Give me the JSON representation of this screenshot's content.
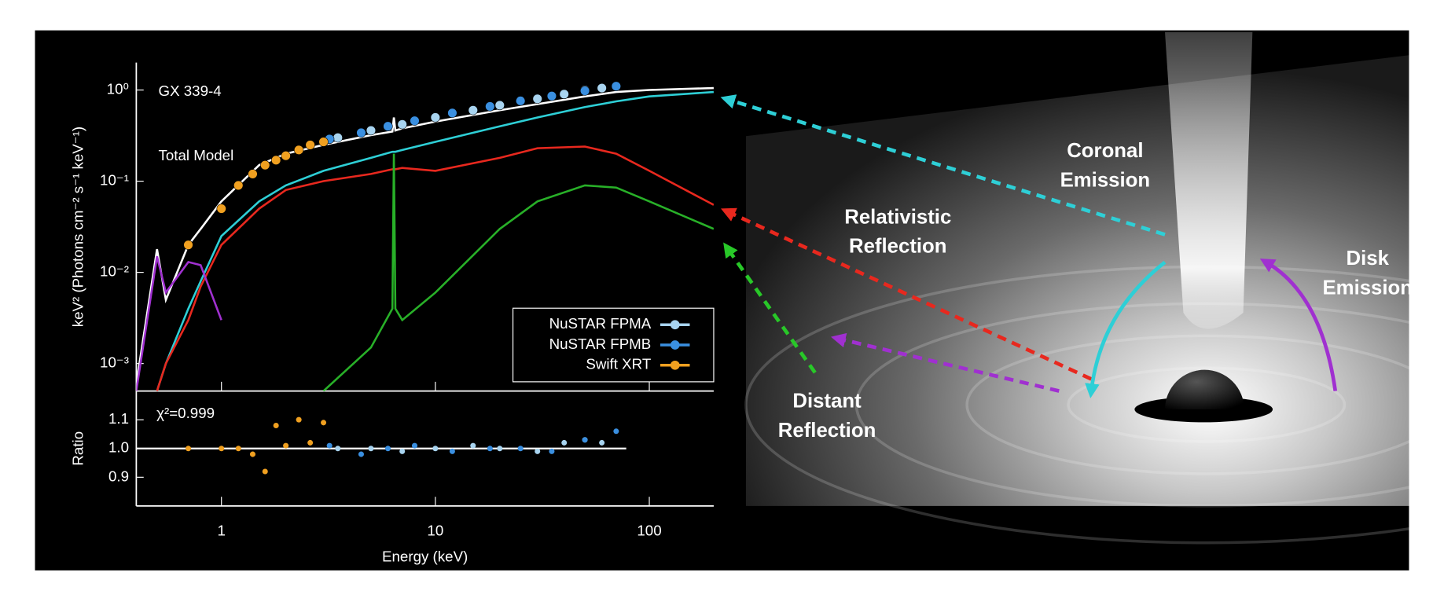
{
  "chart_data": {
    "type": "line",
    "title": "GX 339-4",
    "annotation": "Total Model",
    "xlabel": "Energy (keV)",
    "ylabel": "keV² (Photons cm⁻² s⁻¹ keV⁻¹)",
    "xscale": "log",
    "yscale": "log",
    "xlim": [
      0.4,
      200
    ],
    "ylim": [
      0.0005,
      2
    ],
    "xticks": [
      1,
      10,
      100
    ],
    "yticks": [
      {
        "value": 1,
        "label": "10⁰"
      },
      {
        "value": 0.1,
        "label": "10⁻¹"
      },
      {
        "value": 0.01,
        "label": "10⁻²"
      },
      {
        "value": 0.001,
        "label": "10⁻³"
      }
    ],
    "legend": "lower right",
    "model_x": [
      0.4,
      0.5,
      0.55,
      0.7,
      0.8,
      1,
      1.5,
      2,
      3,
      5,
      6.3,
      6.4,
      6.5,
      7,
      10,
      20,
      30,
      50,
      70,
      100,
      200
    ],
    "models": [
      {
        "color": "#ffffff",
        "values": [
          0.0006,
          0.018,
          0.005,
          0.02,
          0.03,
          0.06,
          0.15,
          0.2,
          0.25,
          0.32,
          0.35,
          0.5,
          0.36,
          0.38,
          0.45,
          0.6,
          0.7,
          0.85,
          0.95,
          1.0,
          1.05
        ]
      },
      {
        "color": "#2ecfd6",
        "values": [
          null,
          0.0005,
          0.001,
          0.004,
          0.008,
          0.025,
          0.06,
          0.09,
          0.13,
          0.18,
          0.21,
          0.21,
          0.21,
          0.22,
          0.27,
          0.4,
          0.5,
          0.65,
          0.75,
          0.85,
          0.95
        ]
      },
      {
        "color": "#e8281e",
        "values": [
          null,
          0.0005,
          0.001,
          0.003,
          0.007,
          0.02,
          0.05,
          0.08,
          0.1,
          0.12,
          0.135,
          0.135,
          0.135,
          0.14,
          0.13,
          0.18,
          0.23,
          0.24,
          0.2,
          0.13,
          0.055
        ]
      },
      {
        "color": "#28b028",
        "values": [
          null,
          null,
          null,
          null,
          null,
          null,
          null,
          null,
          0.0005,
          0.0015,
          0.004,
          0.2,
          0.004,
          0.003,
          0.006,
          0.03,
          0.06,
          0.09,
          0.085,
          0.06,
          0.03
        ]
      },
      {
        "color": "#a030d0",
        "values": [
          0.0005,
          0.015,
          0.006,
          0.013,
          0.012,
          0.003,
          null,
          null,
          null,
          null,
          null,
          null,
          null,
          null,
          null,
          null,
          null,
          null,
          null,
          null,
          null
        ]
      }
    ],
    "series": [
      {
        "name": "NuSTAR FPMA",
        "color": "#a8d4f0",
        "x": [
          3.5,
          5,
          7,
          10,
          15,
          20,
          30,
          40,
          50,
          60
        ],
        "values": [
          0.3,
          0.36,
          0.42,
          0.5,
          0.6,
          0.68,
          0.8,
          0.9,
          1.0,
          1.05
        ],
        "ratio": [
          1.0,
          1.0,
          0.99,
          1.0,
          1.01,
          1.0,
          0.99,
          1.02,
          1.03,
          1.02
        ]
      },
      {
        "name": "NuSTAR FPMB",
        "color": "#3a8fe0",
        "x": [
          3.2,
          4.5,
          6,
          8,
          12,
          18,
          25,
          35,
          50,
          70
        ],
        "values": [
          0.29,
          0.34,
          0.4,
          0.46,
          0.56,
          0.66,
          0.76,
          0.86,
          0.98,
          1.1
        ],
        "ratio": [
          1.01,
          0.98,
          1.0,
          1.01,
          0.99,
          1.0,
          1.0,
          0.99,
          1.03,
          1.06
        ]
      },
      {
        "name": "Swift XRT",
        "color": "#f0a020",
        "x": [
          0.7,
          1,
          1.2,
          1.4,
          1.6,
          1.8,
          2,
          2.3,
          2.6,
          3
        ],
        "values": [
          0.02,
          0.05,
          0.09,
          0.12,
          0.15,
          0.17,
          0.19,
          0.22,
          0.25,
          0.27
        ],
        "ratio": [
          1.0,
          1.0,
          1.0,
          0.98,
          0.92,
          1.08,
          1.01,
          1.1,
          1.02,
          1.09
        ]
      }
    ],
    "ratio": {
      "ylabel": "Ratio",
      "annotation": "χ²=0.999",
      "ylim": [
        0.8,
        1.2
      ],
      "yticks": [
        0.9,
        {
          "value": 1,
          "label": "1.0"
        },
        1.1
      ]
    }
  },
  "illustration": {
    "labels": [
      {
        "lines": [
          "Coronal",
          "Emission"
        ],
        "color": "#2ecfd6"
      },
      {
        "lines": [
          "Relativistic",
          "Reflection"
        ],
        "color": "#e8281e"
      },
      {
        "lines": [
          "Disk",
          "Emission"
        ],
        "color": "#a030d0"
      },
      {
        "lines": [
          "Distant",
          "Reflection"
        ],
        "color": "#28c828"
      }
    ]
  }
}
